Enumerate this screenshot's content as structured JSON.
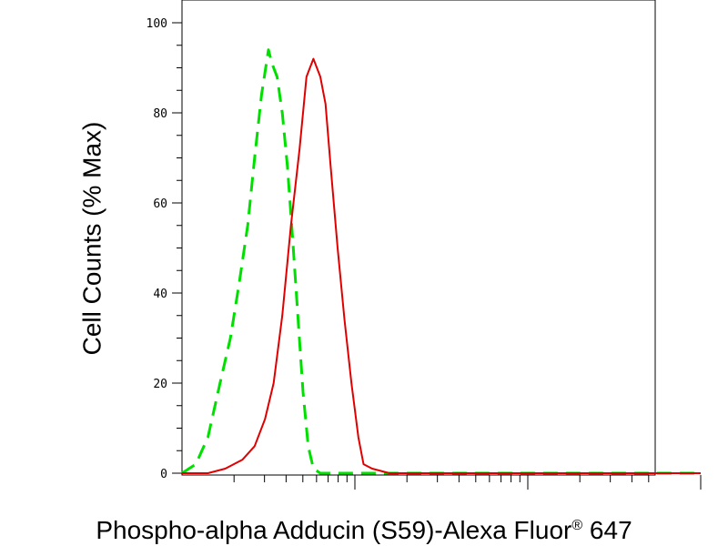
{
  "chart_data": {
    "type": "line",
    "title": "",
    "xlabel": "Phospho-alpha Adducin (S59)-Alexa Fluor",
    "xlabel_superscript": "®",
    "xlabel_suffix": " 647",
    "ylabel": "Cell Counts (% Max)",
    "x_scale": "log",
    "x_decades": 3,
    "ylim": [
      0,
      100
    ],
    "yticks": [
      "0",
      "20",
      "40",
      "60",
      "80",
      "100"
    ],
    "grid": false,
    "legend": "none",
    "series": [
      {
        "color": "#00e000",
        "dash": "dashed",
        "x": [
          0,
          0.08,
          0.15,
          0.22,
          0.28,
          0.33,
          0.38,
          0.42,
          0.46,
          0.5,
          0.52,
          0.55,
          0.58,
          0.61,
          0.64,
          0.67,
          0.7,
          0.73,
          0.76,
          0.8,
          0.85,
          0.9,
          0.95,
          1.0,
          1.2,
          1.5,
          2.0,
          2.5,
          3.0
        ],
        "y": [
          0,
          2,
          8,
          20,
          30,
          42,
          55,
          70,
          84,
          94,
          91,
          88,
          80,
          68,
          52,
          35,
          18,
          6,
          1,
          0,
          0,
          0,
          0,
          0,
          0,
          0,
          0,
          0,
          0
        ]
      },
      {
        "color": "#e00000",
        "dash": "solid",
        "x": [
          0,
          0.15,
          0.25,
          0.35,
          0.42,
          0.48,
          0.53,
          0.58,
          0.63,
          0.68,
          0.72,
          0.76,
          0.8,
          0.83,
          0.86,
          0.9,
          0.94,
          0.98,
          1.02,
          1.05,
          1.1,
          1.15,
          1.2,
          1.3,
          1.45,
          1.6,
          2.0,
          2.5,
          3.0
        ],
        "y": [
          0,
          0,
          1,
          3,
          6,
          12,
          20,
          35,
          55,
          72,
          88,
          92,
          88,
          82,
          68,
          50,
          34,
          20,
          8,
          2,
          1,
          0.5,
          0,
          0,
          0,
          0,
          0,
          0,
          0
        ]
      }
    ]
  }
}
